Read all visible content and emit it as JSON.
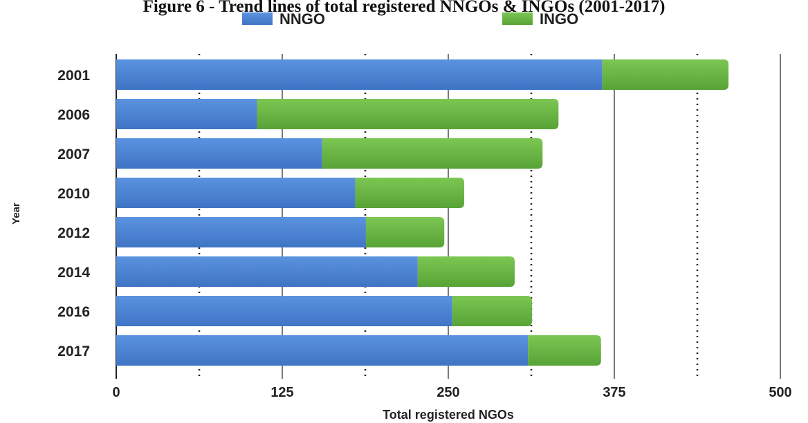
{
  "chart_data": {
    "type": "bar",
    "orientation": "horizontal",
    "stacked": true,
    "title": "Figure 6 - Trend lines of total registered NNGOs & INGOs (2001-2017)",
    "xlabel": "Total registered NGOs",
    "ylabel": "Year",
    "xlim": [
      0,
      500
    ],
    "xticks": [
      "0",
      "125",
      "250",
      "375",
      "500"
    ],
    "categories": [
      "2001",
      "2006",
      "2007",
      "2010",
      "2012",
      "2014",
      "2016",
      "2017"
    ],
    "series": [
      {
        "name": "NNGO",
        "color": "#4f86d4",
        "values": [
          366,
          106,
          155,
          180,
          188,
          227,
          253,
          310
        ]
      },
      {
        "name": "INGO",
        "color": "#6ab744",
        "values": [
          95,
          227,
          166,
          82,
          59,
          73,
          60,
          55
        ]
      }
    ],
    "grid": "vertical",
    "legend_position": "top"
  }
}
